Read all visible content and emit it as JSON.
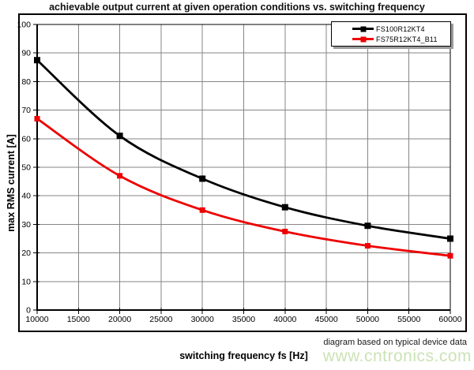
{
  "title": "achievable output current at given operation conditions vs. switching frequency",
  "footnote": "diagram based on typical device data",
  "watermark": "www.cntronics.com",
  "colors": {
    "grid": "#868686",
    "axis": "#000000",
    "frame": "#000000",
    "background": "#ffffff",
    "watermark": "#cbe2b6",
    "legend_shadow": "#9c9c9c"
  },
  "axes": {
    "x_label": "switching frequency fs [Hz]",
    "y_label": "max RMS current [A]",
    "x_tick_labels": [
      "10000",
      "15000",
      "20000",
      "25000",
      "30000",
      "35000",
      "40000",
      "45000",
      "50000",
      "55000",
      "60000"
    ],
    "y_tick_labels": [
      "0",
      "10",
      "20",
      "30",
      "40",
      "50",
      "60",
      "70",
      "80",
      "90",
      "100"
    ]
  },
  "legend": {
    "items": [
      {
        "label": "FS100R12KT4",
        "color": "#000000"
      },
      {
        "label": "FS75R12KT4_B11",
        "color": "#ee0000"
      }
    ]
  },
  "chart_data": {
    "type": "line",
    "title": "achievable output current at given operation conditions vs. switching frequency",
    "xlabel": "switching frequency fs [Hz]",
    "ylabel": "max RMS current [A]",
    "x": [
      10000,
      20000,
      30000,
      40000,
      50000,
      60000
    ],
    "series": [
      {
        "name": "FS100R12KT4",
        "color": "#000000",
        "marker": "square",
        "marker_size": 8,
        "values": [
          87.5,
          61,
          46,
          36,
          29.5,
          25
        ]
      },
      {
        "name": "FS75R12KT4_B11",
        "color": "#ee0000",
        "marker": "square",
        "marker_size": 7,
        "values": [
          67,
          47,
          35,
          27.5,
          22.5,
          19
        ]
      }
    ],
    "xlim": [
      10000,
      60000
    ],
    "ylim": [
      0,
      100
    ],
    "x_tick_step": 5000,
    "y_tick_step": 10,
    "grid": true,
    "legend_position": "top-right",
    "annotation": "diagram based on typical device data"
  }
}
